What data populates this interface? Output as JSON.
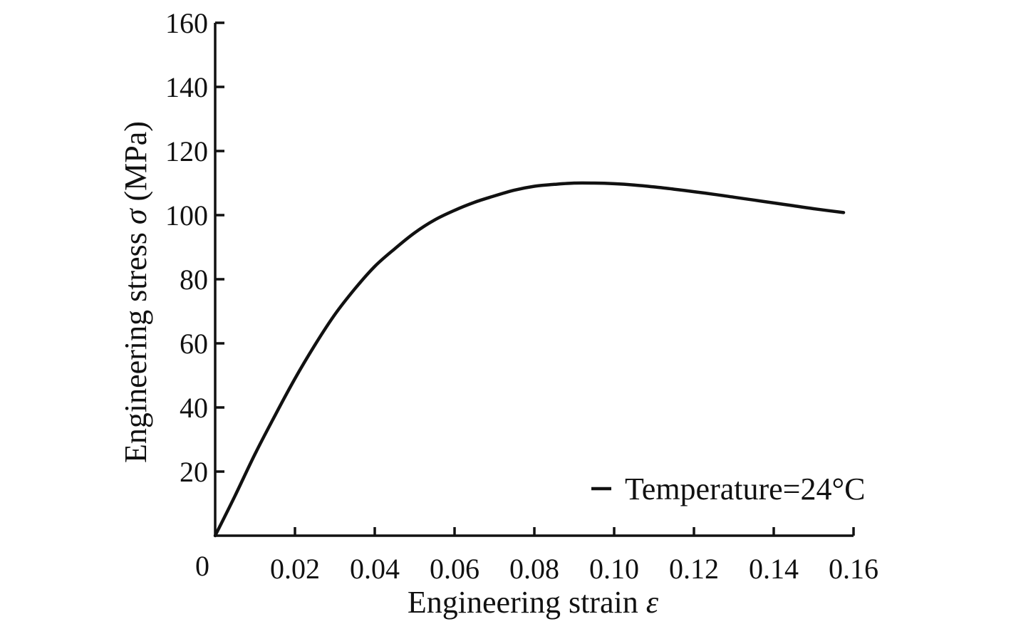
{
  "chart_data": {
    "type": "line",
    "title": "",
    "xlabel": "Engineering strain ",
    "xlabel_symbol": "ε",
    "ylabel": "Engineering stress ",
    "ylabel_symbol": "σ",
    "ylabel_unit": " (MPa)",
    "xlim": [
      0,
      0.16
    ],
    "ylim": [
      0,
      160
    ],
    "origin_label": "0",
    "x_ticks": [
      0.02,
      0.04,
      0.06,
      0.08,
      0.1,
      0.12,
      0.14,
      0.16
    ],
    "x_tick_labels": [
      "0.02",
      "0.04",
      "0.06",
      "0.08",
      "0.10",
      "0.12",
      "0.14",
      "0.16"
    ],
    "y_ticks": [
      20,
      40,
      60,
      80,
      100,
      120,
      140,
      160
    ],
    "y_tick_labels": [
      "20",
      "40",
      "60",
      "80",
      "100",
      "120",
      "140",
      "160"
    ],
    "grid": false,
    "legend_position": "bottom-right",
    "series": [
      {
        "name": "Temperature=24°C",
        "color": "#111111",
        "x": [
          0,
          0.005,
          0.01,
          0.015,
          0.02,
          0.025,
          0.03,
          0.035,
          0.04,
          0.045,
          0.05,
          0.055,
          0.06,
          0.065,
          0.07,
          0.075,
          0.08,
          0.085,
          0.09,
          0.095,
          0.1,
          0.105,
          0.11,
          0.115,
          0.12,
          0.125,
          0.13,
          0.135,
          0.14,
          0.145,
          0.15,
          0.1575
        ],
        "y": [
          0,
          12.5,
          25.5,
          37.5,
          49,
          59.5,
          69,
          77,
          84,
          89.5,
          94.5,
          98.5,
          101.5,
          104,
          106,
          107.8,
          109,
          109.6,
          110,
          110,
          109.8,
          109.4,
          108.8,
          108.1,
          107.3,
          106.5,
          105.6,
          104.7,
          103.8,
          102.9,
          102,
          100.8
        ]
      }
    ]
  }
}
